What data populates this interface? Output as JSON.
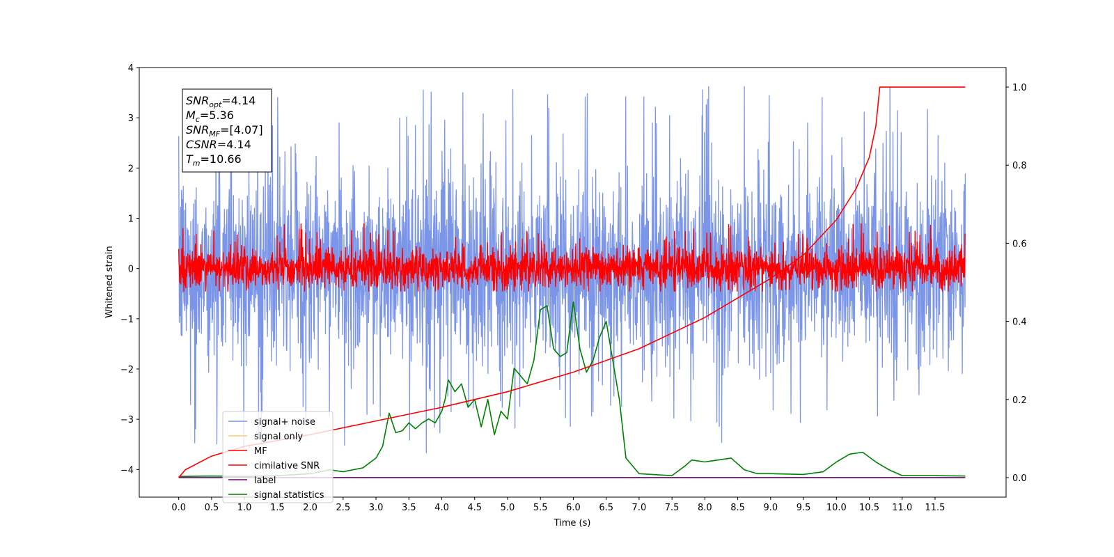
{
  "chart_data": {
    "type": "line",
    "xlabel": "Time (s)",
    "ylabel": "Whitened strain",
    "xlim": [
      -0.6,
      12.58
    ],
    "ylim": [
      -4.55,
      4.0
    ],
    "y2lim": [
      -0.05,
      1.05
    ],
    "x_ticks": [
      "0.0",
      "0.5",
      "1.0",
      "1.5",
      "2.0",
      "2.5",
      "3.0",
      "3.5",
      "4.0",
      "4.5",
      "5.0",
      "5.5",
      "6.0",
      "6.5",
      "7.0",
      "7.5",
      "8.0",
      "8.5",
      "9.0",
      "9.5",
      "10.0",
      "10.5",
      "11.0",
      "11.5"
    ],
    "y_ticks": [
      "4",
      "3",
      "2",
      "1",
      "0",
      "−1",
      "−2",
      "−3",
      "−4"
    ],
    "y2_ticks": [
      "1.0",
      "0.8",
      "0.6",
      "0.4",
      "0.2",
      "0.0"
    ],
    "legend_position": "lower-left",
    "info_box": {
      "snr_opt": {
        "base": "SNR",
        "sub": "opt",
        "value": "=4.14"
      },
      "mc": {
        "base": "M",
        "sub": "c",
        "value": "=5.36"
      },
      "snr_mf": {
        "base": "SNR",
        "sub": "MF",
        "value": "=[4.07]"
      },
      "csnr": {
        "base": "CSNR",
        "sub": "",
        "value": "=4.14"
      },
      "tm": {
        "base": "T",
        "sub": "m",
        "value": "=10.66"
      }
    },
    "series": [
      {
        "name": "signal+ noise",
        "color": "#7b95e8",
        "axis": "left",
        "description": "noise band approx. -2.2 to 2.2 with spikes to about +/-3.6"
      },
      {
        "name": "signal only",
        "color": "#ffc870",
        "axis": "left"
      },
      {
        "name": "MF",
        "color": "#ff0000",
        "axis": "left",
        "description": "band approx. -0.45 to 0.5 with spikes near 0.9"
      },
      {
        "name": "cimilative SNR",
        "color": "#ff0000",
        "axis": "right",
        "x": [
          0.0,
          0.1,
          0.5,
          1.0,
          2.0,
          3.0,
          4.0,
          5.0,
          6.0,
          7.0,
          7.5,
          8.0,
          8.5,
          9.0,
          9.5,
          10.0,
          10.3,
          10.5,
          10.6,
          10.66,
          11.96
        ],
        "y": [
          0.0,
          0.02,
          0.055,
          0.08,
          0.11,
          0.145,
          0.18,
          0.22,
          0.27,
          0.33,
          0.37,
          0.41,
          0.46,
          0.51,
          0.57,
          0.66,
          0.74,
          0.82,
          0.9,
          1.0,
          1.0
        ]
      },
      {
        "name": "label",
        "color": "#6a0070",
        "axis": "right",
        "x": [
          0.0,
          11.96
        ],
        "y": [
          0.0,
          0.0
        ]
      },
      {
        "name": "signal statistics",
        "color": "#008000",
        "axis": "right",
        "x": [
          0.0,
          0.5,
          1.0,
          1.5,
          2.0,
          2.3,
          2.5,
          2.8,
          3.0,
          3.1,
          3.2,
          3.3,
          3.4,
          3.5,
          3.6,
          3.7,
          3.8,
          3.9,
          4.0,
          4.05,
          4.1,
          4.2,
          4.3,
          4.4,
          4.5,
          4.6,
          4.7,
          4.8,
          4.9,
          5.0,
          5.1,
          5.2,
          5.3,
          5.4,
          5.5,
          5.6,
          5.7,
          5.8,
          5.9,
          6.0,
          6.1,
          6.2,
          6.3,
          6.4,
          6.5,
          6.6,
          6.7,
          6.8,
          7.0,
          7.5,
          7.7,
          7.8,
          8.0,
          8.2,
          8.4,
          8.6,
          8.8,
          9.0,
          9.5,
          9.8,
          10.0,
          10.2,
          10.4,
          10.6,
          10.8,
          11.0,
          11.5,
          11.96
        ],
        "y": [
          0.003,
          0.004,
          0.003,
          0.005,
          0.01,
          0.02,
          0.015,
          0.025,
          0.05,
          0.08,
          0.165,
          0.115,
          0.12,
          0.14,
          0.125,
          0.14,
          0.15,
          0.14,
          0.17,
          0.2,
          0.25,
          0.22,
          0.24,
          0.18,
          0.2,
          0.13,
          0.2,
          0.11,
          0.17,
          0.15,
          0.28,
          0.26,
          0.24,
          0.3,
          0.43,
          0.44,
          0.33,
          0.31,
          0.32,
          0.45,
          0.33,
          0.27,
          0.3,
          0.36,
          0.4,
          0.3,
          0.2,
          0.05,
          0.01,
          0.005,
          0.03,
          0.045,
          0.04,
          0.045,
          0.05,
          0.02,
          0.01,
          0.01,
          0.008,
          0.015,
          0.04,
          0.06,
          0.065,
          0.04,
          0.02,
          0.005,
          0.005,
          0.004
        ]
      }
    ]
  }
}
